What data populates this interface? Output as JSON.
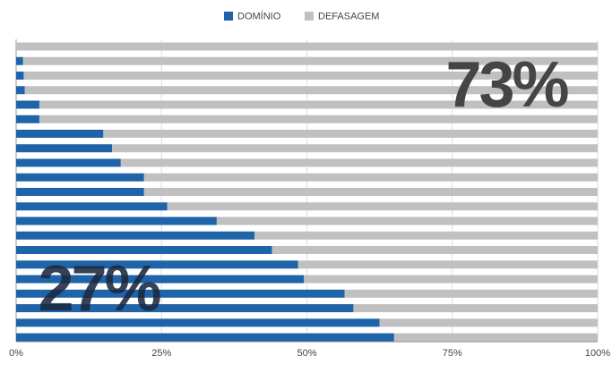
{
  "chart_data": {
    "type": "stacked-bar",
    "orientation": "horizontal",
    "categories": [
      null,
      null,
      null,
      null,
      null,
      null,
      null,
      null,
      null,
      null,
      null,
      null,
      null,
      null,
      null,
      null,
      null,
      null,
      null,
      null,
      null
    ],
    "series": [
      {
        "name": "DOMÍNIO",
        "color": "#1f63a8",
        "values": [
          0,
          1.2,
          1.3,
          1.5,
          4,
          4,
          15,
          16.5,
          18,
          22,
          22,
          26,
          34.5,
          41,
          44,
          48.5,
          49.5,
          56.5,
          58,
          62.5,
          65
        ]
      },
      {
        "name": "DEFASAGEM",
        "color": "#c0c0c0",
        "values": [
          100,
          98.8,
          98.7,
          98.5,
          96,
          96,
          85,
          83.5,
          82,
          78,
          78,
          74,
          65.5,
          59,
          56,
          51.5,
          50.5,
          43.5,
          42,
          37.5,
          35
        ]
      }
    ],
    "xlim": [
      0,
      100
    ],
    "xticks": [
      {
        "value": 0,
        "label": "0%"
      },
      {
        "value": 25,
        "label": "25%"
      },
      {
        "value": 50,
        "label": "50%"
      },
      {
        "value": 75,
        "label": "75%"
      },
      {
        "value": 100,
        "label": "100%"
      }
    ],
    "grid": true,
    "legend": "top",
    "annotations": [
      "73%",
      "27%"
    ]
  }
}
